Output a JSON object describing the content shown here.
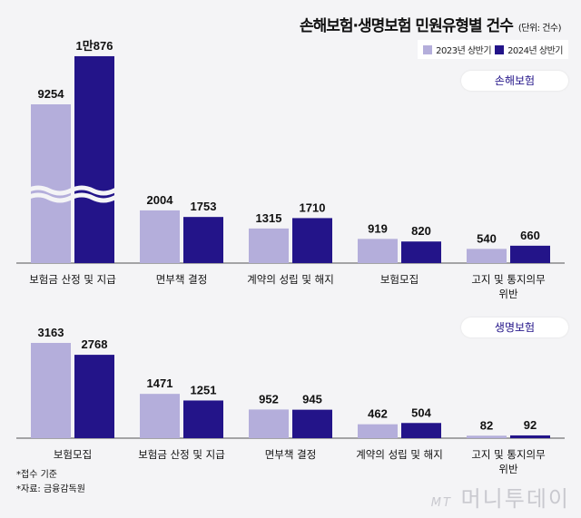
{
  "title": "손해보험·생명보험 민원유형별 건수",
  "unit": "(단위: 건수)",
  "legend": [
    "2023년 상반기",
    "2024년 상반기"
  ],
  "colors": {
    "y2023": "#b4aedb",
    "y2024": "#231489"
  },
  "notes": [
    "*접수 기준",
    "*자료: 금융감독원"
  ],
  "watermark": {
    "logo": "MT",
    "text": "머니투데이"
  },
  "chart_data": [
    {
      "type": "bar",
      "panel": "손해보험",
      "axis_break": true,
      "categories": [
        "보험금 산정 및 지급",
        "면부책 결정",
        "계약의 성립 및 해지",
        "보험모집",
        "고지 및 통지의무 위반"
      ],
      "series": [
        {
          "name": "2023년 상반기",
          "values": [
            9254,
            2004,
            1315,
            919,
            540
          ],
          "labels": [
            "9254",
            "2004",
            "1315",
            "919",
            "540"
          ]
        },
        {
          "name": "2024년 상반기",
          "values": [
            10876,
            1753,
            1710,
            820,
            660
          ],
          "labels": [
            "1만876",
            "1753",
            "1710",
            "820",
            "660"
          ]
        }
      ]
    },
    {
      "type": "bar",
      "panel": "생명보험",
      "axis_break": false,
      "categories": [
        "보험모집",
        "보험금 산정 및 지급",
        "면부책 결정",
        "계약의 성립 및 해지",
        "고지 및 통지의무 위반"
      ],
      "series": [
        {
          "name": "2023년 상반기",
          "values": [
            3163,
            1471,
            952,
            462,
            82
          ],
          "labels": [
            "3163",
            "1471",
            "952",
            "462",
            "82"
          ]
        },
        {
          "name": "2024년 상반기",
          "values": [
            2768,
            1251,
            945,
            504,
            92
          ],
          "labels": [
            "2768",
            "1251",
            "945",
            "504",
            "92"
          ]
        }
      ]
    }
  ]
}
